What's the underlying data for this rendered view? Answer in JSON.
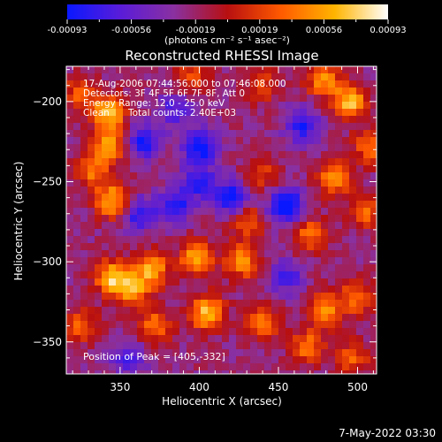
{
  "chart_data": {
    "type": "heatmap",
    "title": "Reconstructed RHESSI Image",
    "xlabel": "Heliocentric X (arcsec)",
    "ylabel": "Heliocentric Y (arcsec)",
    "xlim": [
      316,
      512
    ],
    "ylim": [
      -370,
      -178
    ],
    "xticks": [
      350,
      400,
      450,
      500
    ],
    "yticks": [
      -200,
      -250,
      -300,
      -350
    ],
    "colorbar": {
      "label": "(photons cm⁻² s⁻¹ asec⁻²)",
      "range": [
        -0.00093,
        0.00093
      ],
      "ticks": [
        "-0.00093",
        "-0.00056",
        "-0.00019",
        "0.00019",
        "0.00056",
        "0.00093"
      ],
      "colors": [
        "#0a18ff",
        "#5a1cd8",
        "#8a30a0",
        "#b81010",
        "#ff5a00",
        "#ffb400",
        "#ffffff"
      ]
    },
    "annotations": [
      "17-Aug-2006 07:44:56.000 to 07:46:08.000",
      "Detectors: 3F 4F 5F 6F 7F 8F, Att 0",
      "Energy Range: 12.0 - 25.0 keV",
      "Clean",
      "Total counts: 2.40E+03"
    ],
    "peak_text": "Position of Peak = [405,-332]",
    "peak": [
      405,
      -332
    ],
    "bright_regions": [
      {
        "x": 343,
        "y": -207,
        "v": 0.0009
      },
      {
        "x": 343,
        "y": -228,
        "v": 0.00075
      },
      {
        "x": 345,
        "y": -262,
        "v": 0.00085
      },
      {
        "x": 332,
        "y": -243,
        "v": 0.0006
      },
      {
        "x": 345,
        "y": -310,
        "v": 0.0009
      },
      {
        "x": 370,
        "y": -305,
        "v": 0.0008
      },
      {
        "x": 398,
        "y": -298,
        "v": 0.0008
      },
      {
        "x": 427,
        "y": -300,
        "v": 0.0007
      },
      {
        "x": 358,
        "y": -318,
        "v": 0.0007
      },
      {
        "x": 405,
        "y": -332,
        "v": 0.00093
      },
      {
        "x": 372,
        "y": -340,
        "v": 0.0006
      },
      {
        "x": 440,
        "y": -338,
        "v": 0.0006
      },
      {
        "x": 480,
        "y": -330,
        "v": 0.0007
      },
      {
        "x": 500,
        "y": -322,
        "v": 0.0006
      },
      {
        "x": 468,
        "y": -353,
        "v": 0.0006
      },
      {
        "x": 497,
        "y": -360,
        "v": 0.0005
      },
      {
        "x": 495,
        "y": -200,
        "v": 0.0009
      },
      {
        "x": 478,
        "y": -186,
        "v": 0.0007
      },
      {
        "x": 508,
        "y": -228,
        "v": 0.0006
      },
      {
        "x": 485,
        "y": -248,
        "v": 0.0007
      },
      {
        "x": 505,
        "y": -268,
        "v": 0.0006
      },
      {
        "x": 470,
        "y": -283,
        "v": 0.0006
      },
      {
        "x": 430,
        "y": -275,
        "v": 0.0005
      },
      {
        "x": 440,
        "y": -245,
        "v": 0.0004
      },
      {
        "x": 395,
        "y": -185,
        "v": 0.0005
      },
      {
        "x": 440,
        "y": -190,
        "v": 0.0004
      },
      {
        "x": 325,
        "y": -340,
        "v": 0.0005
      },
      {
        "x": 325,
        "y": -195,
        "v": 0.0005
      }
    ],
    "dark_regions": [
      {
        "x": 365,
        "y": -225,
        "v": -0.0007
      },
      {
        "x": 400,
        "y": -228,
        "v": -0.0008
      },
      {
        "x": 420,
        "y": -260,
        "v": -0.0007
      },
      {
        "x": 455,
        "y": -265,
        "v": -0.0009
      },
      {
        "x": 400,
        "y": -250,
        "v": -0.0006
      },
      {
        "x": 362,
        "y": -270,
        "v": -0.0006
      },
      {
        "x": 385,
        "y": -265,
        "v": -0.0006
      },
      {
        "x": 355,
        "y": -360,
        "v": -0.0005
      },
      {
        "x": 465,
        "y": -215,
        "v": -0.0006
      },
      {
        "x": 385,
        "y": -205,
        "v": -0.0005
      },
      {
        "x": 455,
        "y": -310,
        "v": -0.0005
      }
    ],
    "grid": false
  },
  "footer": {
    "date": "7-May-2022 03:30"
  }
}
